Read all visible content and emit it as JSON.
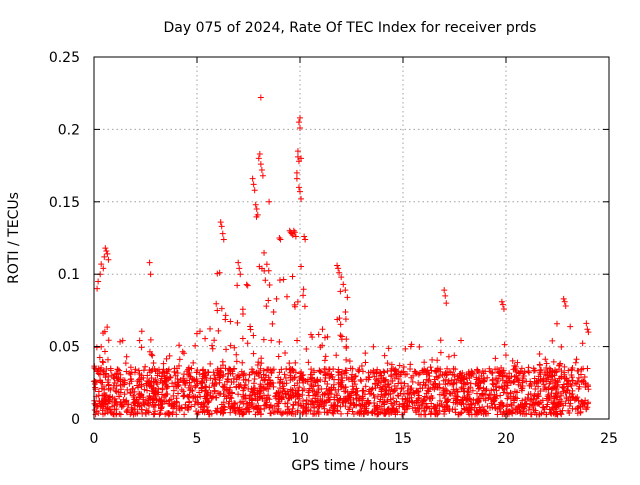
{
  "chart_data": {
    "type": "scatter",
    "title": "Day 075 of 2024, Rate Of TEC Index for receiver prds",
    "xlabel": "GPS time / hours",
    "ylabel": "ROTI / TECUs",
    "xlim": [
      0,
      25
    ],
    "ylim": [
      0,
      0.25
    ],
    "x_ticks": [
      "0",
      "5",
      "10",
      "15",
      "20",
      "25"
    ],
    "y_ticks": [
      "0",
      "0.05",
      "0.1",
      "0.15",
      "0.2",
      "0.25"
    ],
    "grid": true,
    "marker": "plus",
    "marker_color": "#ff0000",
    "series": [
      {
        "name": "prds",
        "x_range": [
          0,
          24
        ],
        "baseline_range": [
          0.003,
          0.035
        ],
        "activity_envelope": [
          [
            0.0,
            0.05
          ],
          [
            0.3,
            0.11
          ],
          [
            0.6,
            0.1
          ],
          [
            1.0,
            0.05
          ],
          [
            1.5,
            0.06
          ],
          [
            2.0,
            0.05
          ],
          [
            2.7,
            0.1
          ],
          [
            3.0,
            0.06
          ],
          [
            3.5,
            0.05
          ],
          [
            4.5,
            0.06
          ],
          [
            5.0,
            0.07
          ],
          [
            5.5,
            0.08
          ],
          [
            6.0,
            0.13
          ],
          [
            6.5,
            0.09
          ],
          [
            7.0,
            0.1
          ],
          [
            7.5,
            0.11
          ],
          [
            8.0,
            0.18
          ],
          [
            8.5,
            0.14
          ],
          [
            9.0,
            0.13
          ],
          [
            9.5,
            0.15
          ],
          [
            10.0,
            0.2
          ],
          [
            10.5,
            0.12
          ],
          [
            11.0,
            0.08
          ],
          [
            11.5,
            0.07
          ],
          [
            12.0,
            0.1
          ],
          [
            12.5,
            0.07
          ],
          [
            13.0,
            0.06
          ],
          [
            14.0,
            0.05
          ],
          [
            15.0,
            0.06
          ],
          [
            16.0,
            0.07
          ],
          [
            17.0,
            0.08
          ],
          [
            18.0,
            0.05
          ],
          [
            19.0,
            0.05
          ],
          [
            20.0,
            0.07
          ],
          [
            21.0,
            0.06
          ],
          [
            22.0,
            0.07
          ],
          [
            22.8,
            0.08
          ],
          [
            23.5,
            0.05
          ],
          [
            24.0,
            0.06
          ]
        ],
        "notable_points": [
          [
            8.1,
            0.222
          ],
          [
            10.0,
            0.208
          ],
          [
            9.95,
            0.205
          ],
          [
            10.0,
            0.201
          ],
          [
            8.05,
            0.183
          ],
          [
            8.0,
            0.18
          ],
          [
            8.1,
            0.176
          ],
          [
            8.15,
            0.172
          ],
          [
            8.2,
            0.168
          ],
          [
            9.9,
            0.185
          ],
          [
            9.9,
            0.181
          ],
          [
            9.95,
            0.178
          ],
          [
            10.05,
            0.18
          ],
          [
            9.95,
            0.16
          ],
          [
            10.0,
            0.157
          ],
          [
            10.05,
            0.152
          ],
          [
            9.85,
            0.17
          ],
          [
            9.85,
            0.166
          ],
          [
            7.7,
            0.166
          ],
          [
            7.75,
            0.162
          ],
          [
            7.8,
            0.158
          ],
          [
            7.85,
            0.148
          ],
          [
            7.9,
            0.145
          ],
          [
            7.95,
            0.141
          ],
          [
            8.5,
            0.15
          ],
          [
            9.5,
            0.13
          ],
          [
            9.55,
            0.129
          ],
          [
            9.6,
            0.128
          ],
          [
            9.65,
            0.127
          ],
          [
            9.7,
            0.13
          ],
          [
            9.75,
            0.129
          ],
          [
            9.8,
            0.126
          ],
          [
            10.2,
            0.126
          ],
          [
            10.25,
            0.124
          ],
          [
            9.0,
            0.125
          ],
          [
            9.05,
            0.124
          ],
          [
            6.15,
            0.136
          ],
          [
            6.2,
            0.133
          ],
          [
            6.25,
            0.128
          ],
          [
            6.3,
            0.124
          ],
          [
            0.55,
            0.118
          ],
          [
            0.6,
            0.116
          ],
          [
            0.65,
            0.114
          ],
          [
            0.5,
            0.112
          ],
          [
            0.7,
            0.11
          ],
          [
            0.35,
            0.107
          ],
          [
            0.45,
            0.104
          ],
          [
            0.3,
            0.1
          ],
          [
            0.2,
            0.095
          ],
          [
            0.15,
            0.09
          ],
          [
            2.7,
            0.108
          ],
          [
            2.75,
            0.1
          ],
          [
            6.1,
            0.101
          ],
          [
            7.0,
            0.108
          ],
          [
            7.05,
            0.104
          ],
          [
            7.1,
            0.1
          ],
          [
            11.8,
            0.106
          ],
          [
            11.85,
            0.104
          ],
          [
            11.9,
            0.101
          ],
          [
            12.0,
            0.098
          ],
          [
            12.1,
            0.093
          ],
          [
            12.2,
            0.089
          ],
          [
            12.3,
            0.084
          ],
          [
            17.0,
            0.089
          ],
          [
            17.05,
            0.085
          ],
          [
            17.1,
            0.08
          ],
          [
            19.8,
            0.081
          ],
          [
            19.85,
            0.079
          ],
          [
            19.9,
            0.076
          ],
          [
            22.8,
            0.083
          ],
          [
            22.85,
            0.081
          ],
          [
            22.9,
            0.078
          ],
          [
            23.9,
            0.066
          ],
          [
            23.95,
            0.062
          ],
          [
            24.0,
            0.06
          ]
        ]
      }
    ]
  }
}
